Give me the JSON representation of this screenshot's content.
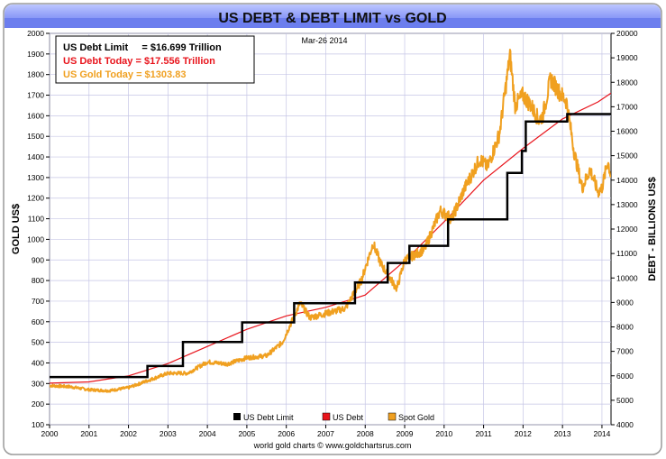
{
  "chart_data": {
    "type": "line",
    "title": "US DEBT & DEBT LIMIT vs GOLD",
    "date_label": "Mar-26  2014",
    "ylabel_left": "GOLD US$",
    "ylabel_right": "DEBT - BILLIONS US$",
    "footer": "world gold charts © www.goldchartsrus.com",
    "xlim": [
      2000.0,
      2014.23
    ],
    "ylim_left": [
      100,
      2000
    ],
    "ylim_right": [
      4000,
      20000
    ],
    "x_ticks": [
      "2000",
      "2001",
      "2002",
      "2003",
      "2004",
      "2005",
      "2006",
      "2007",
      "2008",
      "2009",
      "2010",
      "2011",
      "2012",
      "2013",
      "2014"
    ],
    "y_ticks_left": [
      "100",
      "200",
      "300",
      "400",
      "500",
      "600",
      "700",
      "800",
      "900",
      "1000",
      "1100",
      "1200",
      "1300",
      "1400",
      "1500",
      "1600",
      "1700",
      "1800",
      "1900",
      "2000"
    ],
    "y_ticks_right": [
      "4000",
      "5000",
      "6000",
      "7000",
      "8000",
      "9000",
      "10000",
      "11000",
      "12000",
      "13000",
      "14000",
      "15000",
      "16000",
      "17000",
      "18000",
      "19000",
      "20000"
    ],
    "info_box": [
      {
        "text": "US Debt Limit     = $16.699 Trillion",
        "color": "#000000"
      },
      {
        "text": "US Debt Today = $17.556 Trillion",
        "color": "#e8141c"
      },
      {
        "text": "US Gold Today = $1303.83",
        "color": "#f0a020"
      }
    ],
    "legend": [
      {
        "label": "US Debt Limit",
        "color": "#000000"
      },
      {
        "label": "US Debt",
        "color": "#e8141c"
      },
      {
        "label": "Spot Gold",
        "color": "#f0a020"
      }
    ],
    "series": [
      {
        "name": "US Debt Limit",
        "axis": "right",
        "color": "#000000",
        "step": true,
        "points": [
          [
            2000.0,
            5950
          ],
          [
            2002.48,
            6400
          ],
          [
            2003.38,
            7384
          ],
          [
            2004.88,
            8184
          ],
          [
            2006.2,
            8965
          ],
          [
            2007.74,
            9815
          ],
          [
            2008.57,
            10615
          ],
          [
            2009.12,
            11315
          ],
          [
            2010.1,
            12394
          ],
          [
            2011.6,
            14294
          ],
          [
            2011.97,
            15194
          ],
          [
            2012.07,
            16394
          ],
          [
            2013.12,
            16699
          ],
          [
            2014.23,
            16699
          ]
        ]
      },
      {
        "name": "US Debt",
        "axis": "right",
        "color": "#e8141c",
        "points": [
          [
            2000.0,
            5700
          ],
          [
            2001.0,
            5750
          ],
          [
            2002.0,
            6000
          ],
          [
            2003.0,
            6500
          ],
          [
            2004.0,
            7200
          ],
          [
            2005.0,
            7900
          ],
          [
            2006.0,
            8450
          ],
          [
            2007.0,
            8800
          ],
          [
            2008.0,
            9300
          ],
          [
            2009.0,
            10700
          ],
          [
            2010.0,
            12300
          ],
          [
            2011.0,
            14000
          ],
          [
            2012.0,
            15300
          ],
          [
            2013.0,
            16500
          ],
          [
            2013.9,
            17200
          ],
          [
            2014.23,
            17556
          ]
        ]
      },
      {
        "name": "Spot Gold",
        "axis": "left",
        "color": "#f0a020",
        "points": [
          [
            2000.0,
            290
          ],
          [
            2000.5,
            285
          ],
          [
            2001.0,
            270
          ],
          [
            2001.5,
            265
          ],
          [
            2002.0,
            280
          ],
          [
            2002.5,
            315
          ],
          [
            2003.0,
            350
          ],
          [
            2003.5,
            350
          ],
          [
            2004.0,
            405
          ],
          [
            2004.5,
            395
          ],
          [
            2005.0,
            425
          ],
          [
            2005.5,
            435
          ],
          [
            2005.9,
            500
          ],
          [
            2006.35,
            690
          ],
          [
            2006.6,
            620
          ],
          [
            2007.0,
            640
          ],
          [
            2007.5,
            665
          ],
          [
            2007.9,
            800
          ],
          [
            2008.2,
            980
          ],
          [
            2008.4,
            880
          ],
          [
            2008.8,
            760
          ],
          [
            2009.0,
            900
          ],
          [
            2009.5,
            950
          ],
          [
            2009.9,
            1140
          ],
          [
            2010.2,
            1100
          ],
          [
            2010.5,
            1240
          ],
          [
            2010.9,
            1390
          ],
          [
            2011.1,
            1350
          ],
          [
            2011.4,
            1510
          ],
          [
            2011.67,
            1895
          ],
          [
            2011.8,
            1650
          ],
          [
            2012.0,
            1700
          ],
          [
            2012.2,
            1650
          ],
          [
            2012.4,
            1580
          ],
          [
            2012.5,
            1600
          ],
          [
            2012.7,
            1780
          ],
          [
            2012.9,
            1720
          ],
          [
            2013.1,
            1670
          ],
          [
            2013.3,
            1420
          ],
          [
            2013.5,
            1250
          ],
          [
            2013.7,
            1340
          ],
          [
            2013.9,
            1230
          ],
          [
            2014.0,
            1250
          ],
          [
            2014.15,
            1380
          ],
          [
            2014.23,
            1303.83
          ]
        ]
      }
    ]
  }
}
